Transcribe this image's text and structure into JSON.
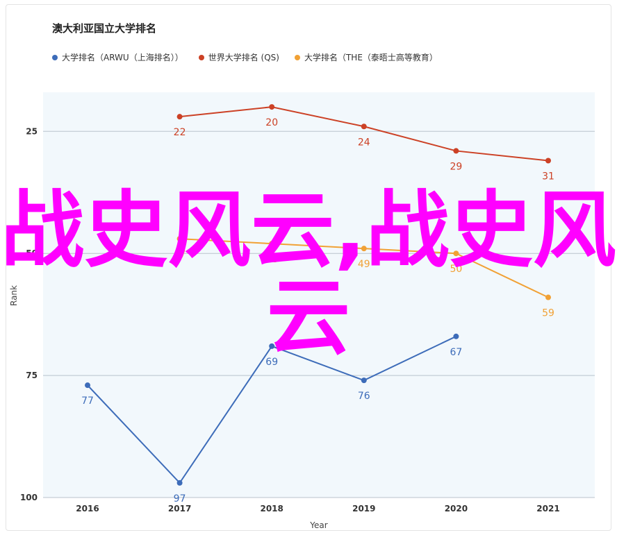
{
  "chart_data": {
    "type": "line",
    "title": "澳大利亚国立大学排名",
    "xlabel": "Year",
    "ylabel": "Rank",
    "x": [
      "2016",
      "2017",
      "2018",
      "2019",
      "2020",
      "2021"
    ],
    "ylim": [
      100,
      17
    ],
    "y_reversed": true,
    "yticks": [
      25,
      50,
      75,
      100
    ],
    "grid": true,
    "legend_position": "top",
    "series": [
      {
        "name": "大学排名（ARWU（上海排名））",
        "color": "#3d6cb9",
        "values": [
          77,
          97,
          69,
          76,
          67,
          null
        ]
      },
      {
        "name": "世界大学排名 (QS)",
        "color": "#cc4125",
        "values": [
          null,
          22,
          20,
          24,
          29,
          31
        ]
      },
      {
        "name": "大学排名（THE（泰晤士高等教育）",
        "color": "#f1a135",
        "values": [
          null,
          47,
          48,
          49,
          50,
          59
        ]
      }
    ]
  },
  "watermark": {
    "text": "战史风云,战史风云",
    "color": "#ff00ff"
  }
}
